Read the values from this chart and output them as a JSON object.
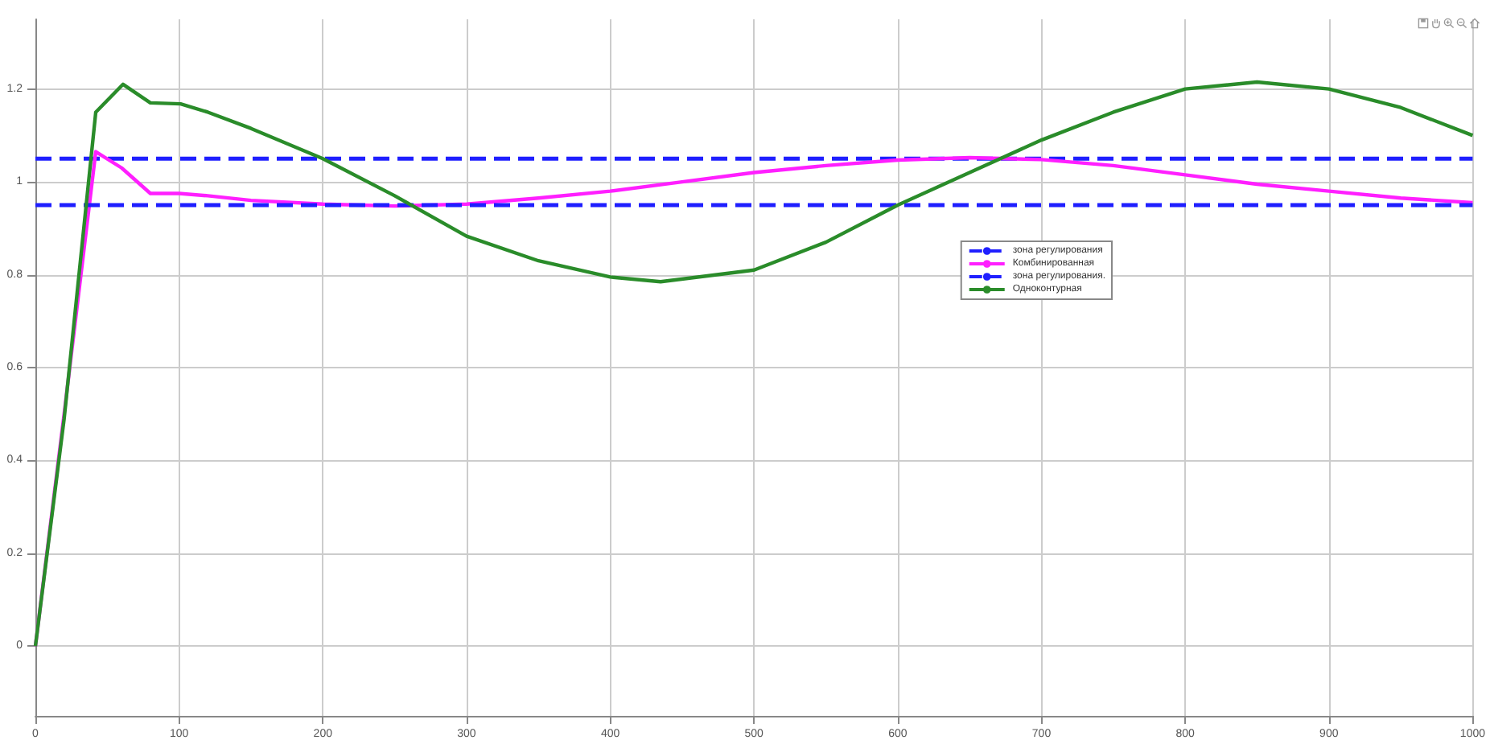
{
  "chart_data": {
    "type": "line",
    "xlim": [
      0,
      1000
    ],
    "xticks": [
      0,
      100,
      200,
      300,
      400,
      500,
      600,
      700,
      800,
      900,
      1000
    ],
    "ylim": [
      -0.15,
      1.35
    ],
    "yticks": [
      0,
      0.2,
      0.4,
      0.6,
      0.8,
      1,
      1.2
    ],
    "grid": true,
    "legend": "right",
    "series": [
      {
        "name": "зона регулирования",
        "color": "#1f1fff",
        "line_style": "dashed",
        "x": [
          0,
          1000
        ],
        "values": [
          1.05,
          1.05
        ]
      },
      {
        "name": "Комбинированная",
        "color": "#ff1fff",
        "line_style": "solid",
        "x": [
          0,
          20,
          42,
          60,
          80,
          100,
          120,
          150,
          200,
          250,
          300,
          350,
          400,
          450,
          500,
          550,
          600,
          650,
          700,
          750,
          800,
          850,
          900,
          950,
          1000
        ],
        "values": [
          0,
          0.5,
          1.065,
          1.03,
          0.975,
          0.975,
          0.97,
          0.96,
          0.952,
          0.948,
          0.952,
          0.965,
          0.98,
          1.0,
          1.02,
          1.035,
          1.047,
          1.052,
          1.048,
          1.035,
          1.015,
          0.995,
          0.98,
          0.965,
          0.955
        ]
      },
      {
        "name": "зона регулирования.",
        "color": "#1f1fff",
        "line_style": "dashed",
        "x": [
          0,
          1000
        ],
        "values": [
          0.95,
          0.95
        ]
      },
      {
        "name": "Одноконтурная",
        "color": "#2a8c2a",
        "line_style": "solid",
        "x": [
          0,
          20,
          42,
          61,
          80,
          101,
          120,
          150,
          200,
          250,
          300,
          350,
          400,
          435,
          500,
          550,
          600,
          650,
          700,
          750,
          800,
          850,
          900,
          950,
          1000
        ],
        "values": [
          0,
          0.49,
          1.15,
          1.21,
          1.17,
          1.168,
          1.15,
          1.115,
          1.05,
          0.97,
          0.883,
          0.83,
          0.795,
          0.785,
          0.81,
          0.87,
          0.95,
          1.02,
          1.09,
          1.15,
          1.2,
          1.215,
          1.2,
          1.16,
          1.1
        ]
      }
    ]
  }
}
